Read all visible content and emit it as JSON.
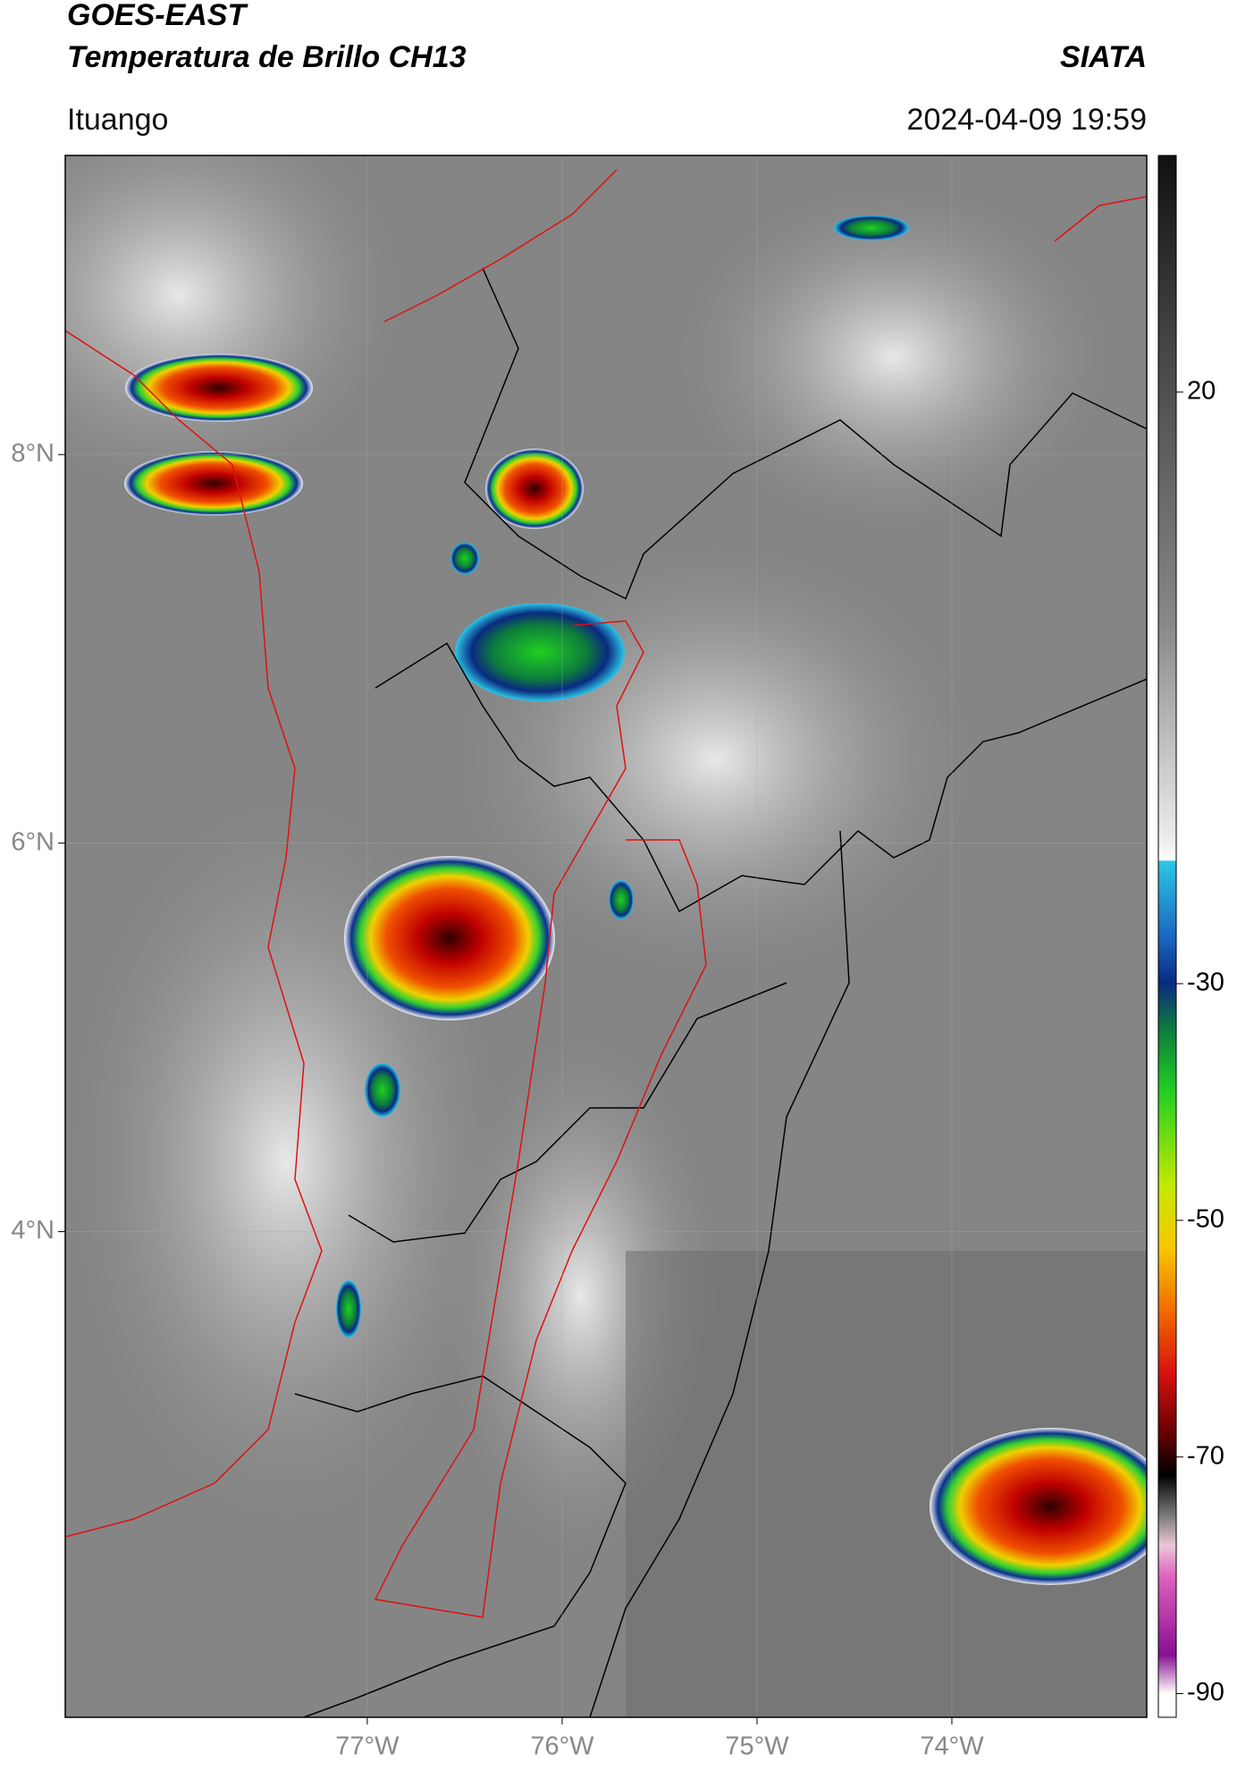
{
  "header": {
    "title": "GOES-EAST",
    "subtitle": "Temperatura de Brillo CH13",
    "source": "SIATA",
    "region": "Ituango",
    "timestamp": "2024-04-09 19:59"
  },
  "map": {
    "xlim": [
      -78.55,
      -73.0
    ],
    "ylim": [
      1.5,
      9.54
    ],
    "xticks": [
      {
        "value": -77,
        "label": "77°W"
      },
      {
        "value": -76,
        "label": "76°W"
      },
      {
        "value": -75,
        "label": "75°W"
      },
      {
        "value": -74,
        "label": "74°W"
      }
    ],
    "yticks": [
      {
        "value": 8,
        "label": "8°N"
      },
      {
        "value": 6,
        "label": "6°N"
      },
      {
        "value": 4,
        "label": "4°N"
      }
    ],
    "grid": true
  },
  "colorbar": {
    "lim": [
      -92,
      40
    ],
    "ticks": [
      20,
      -30,
      -50,
      -70,
      -90
    ]
  }
}
